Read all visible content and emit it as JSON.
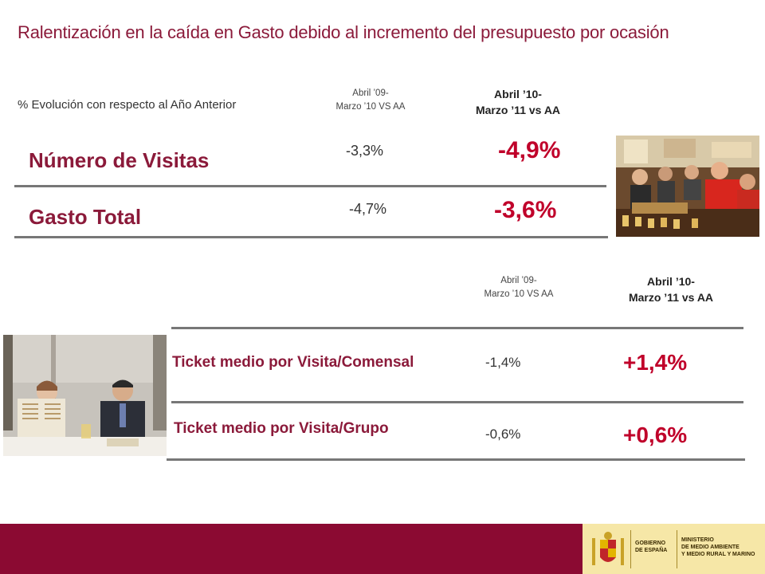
{
  "title": "Ralentización en la caída en Gasto debido al incremento del presupuesto por ocasión",
  "top": {
    "subtitle": "% Evolución con respecto al Año Anterior",
    "col1_line1": "Abril ’09-",
    "col1_line2": "Marzo ’10 VS AA",
    "col2_line1": "Abril ’10-",
    "col2_line2": "Marzo ’11 vs AA",
    "rows": [
      {
        "label": "Número de Visitas",
        "prev": "-3,3%",
        "curr": "-4,9%"
      },
      {
        "label": "Gasto Total",
        "prev": "-4,7%",
        "curr": "-3,6%"
      }
    ]
  },
  "bottom": {
    "col1_line1": "Abril ’09-",
    "col1_line2": "Marzo ’10 VS AA",
    "col2_line1": "Abril ’10-",
    "col2_line2": "Marzo ’11 vs AA",
    "rows": [
      {
        "label": "Ticket medio por Visita/Comensal",
        "prev": "-1,4%",
        "curr": "+1,4%"
      },
      {
        "label": "Ticket medio por Visita/Grupo",
        "prev": "-0,6%",
        "curr": "+0,6%"
      }
    ]
  },
  "footer": {
    "logo_gobierno_1": "GOBIERNO",
    "logo_gobierno_2": "DE ESPAÑA",
    "logo_ministerio_1": "MINISTERIO",
    "logo_ministerio_2": "DE MEDIO AMBIENTE",
    "logo_ministerio_3": "Y MEDIO RURAL Y MARINO"
  },
  "colors": {
    "brand": "#8b1a3a",
    "highlight": "#c0002a",
    "footer": "#8b0a32"
  }
}
